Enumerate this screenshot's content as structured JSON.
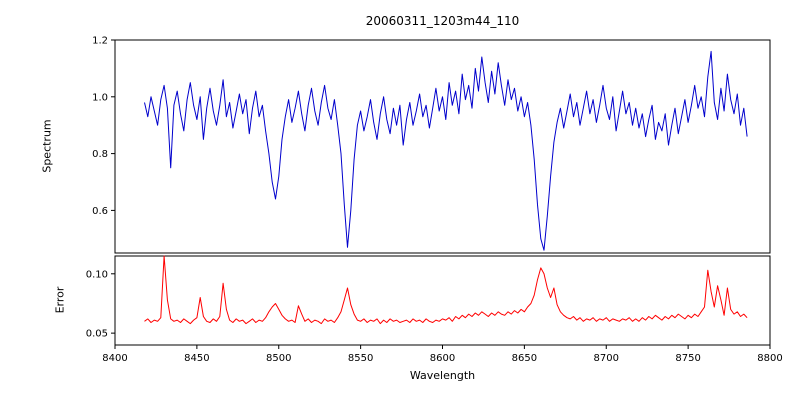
{
  "figure": {
    "title": "20060311_1203m44_110",
    "xlabel": "Wavelength",
    "ylabel_top": "Spectrum",
    "ylabel_bottom": "Error"
  },
  "chart_data": {
    "type": "line",
    "title": "20060311_1203m44_110",
    "xlabel": "Wavelength",
    "xlim": [
      8400,
      8800
    ],
    "xticks": [
      8400,
      8450,
      8500,
      8550,
      8600,
      8650,
      8700,
      8750,
      8800
    ],
    "grid": false,
    "legend": "none",
    "panels": [
      {
        "ylabel": "Spectrum",
        "color": "#0000cd",
        "ylim": [
          0.45,
          1.2
        ],
        "yticks": [
          0.6,
          0.8,
          1.0,
          1.2
        ],
        "ytick_labels": [
          "0.6",
          "0.8",
          "1.0",
          "1.2"
        ]
      },
      {
        "ylabel": "Error",
        "color": "#ff0000",
        "ylim": [
          0.04,
          0.115
        ],
        "yticks": [
          0.05,
          0.1
        ],
        "ytick_labels": [
          "0.05",
          "0.10"
        ]
      }
    ],
    "x": [
      8418,
      8420,
      8422,
      8424,
      8426,
      8428,
      8430,
      8432,
      8434,
      8436,
      8438,
      8440,
      8442,
      8444,
      8446,
      8448,
      8450,
      8452,
      8454,
      8456,
      8458,
      8460,
      8462,
      8464,
      8466,
      8468,
      8470,
      8472,
      8474,
      8476,
      8478,
      8480,
      8482,
      8484,
      8486,
      8488,
      8490,
      8492,
      8494,
      8496,
      8498,
      8500,
      8502,
      8504,
      8506,
      8508,
      8510,
      8512,
      8514,
      8516,
      8518,
      8520,
      8522,
      8524,
      8526,
      8528,
      8530,
      8532,
      8534,
      8536,
      8538,
      8540,
      8542,
      8544,
      8546,
      8548,
      8550,
      8552,
      8554,
      8556,
      8558,
      8560,
      8562,
      8564,
      8566,
      8568,
      8570,
      8572,
      8574,
      8576,
      8578,
      8580,
      8582,
      8584,
      8586,
      8588,
      8590,
      8592,
      8594,
      8596,
      8598,
      8600,
      8602,
      8604,
      8606,
      8608,
      8610,
      8612,
      8614,
      8616,
      8618,
      8620,
      8622,
      8624,
      8626,
      8628,
      8630,
      8632,
      8634,
      8636,
      8638,
      8640,
      8642,
      8644,
      8646,
      8648,
      8650,
      8652,
      8654,
      8656,
      8658,
      8660,
      8662,
      8664,
      8666,
      8668,
      8670,
      8672,
      8674,
      8676,
      8678,
      8680,
      8682,
      8684,
      8686,
      8688,
      8690,
      8692,
      8694,
      8696,
      8698,
      8700,
      8702,
      8704,
      8706,
      8708,
      8710,
      8712,
      8714,
      8716,
      8718,
      8720,
      8722,
      8724,
      8726,
      8728,
      8730,
      8732,
      8734,
      8736,
      8738,
      8740,
      8742,
      8744,
      8746,
      8748,
      8750,
      8752,
      8754,
      8756,
      8758,
      8760,
      8762,
      8764,
      8766,
      8768,
      8770,
      8772,
      8774,
      8776,
      8778,
      8780,
      8782,
      8784,
      8786
    ],
    "series": [
      {
        "name": "spectrum",
        "values": [
          0.98,
          0.93,
          1.0,
          0.95,
          0.9,
          0.99,
          1.04,
          0.96,
          0.75,
          0.97,
          1.02,
          0.94,
          0.88,
          0.99,
          1.05,
          0.97,
          0.92,
          1.0,
          0.85,
          0.96,
          1.03,
          0.95,
          0.9,
          0.97,
          1.06,
          0.93,
          0.98,
          0.89,
          0.95,
          1.01,
          0.94,
          0.99,
          0.87,
          0.96,
          1.02,
          0.93,
          0.97,
          0.88,
          0.8,
          0.7,
          0.64,
          0.72,
          0.85,
          0.93,
          0.99,
          0.91,
          0.96,
          1.02,
          0.94,
          0.88,
          0.97,
          1.03,
          0.95,
          0.9,
          0.98,
          1.04,
          0.96,
          0.92,
          0.99,
          0.9,
          0.8,
          0.62,
          0.47,
          0.6,
          0.78,
          0.9,
          0.95,
          0.88,
          0.93,
          0.99,
          0.91,
          0.85,
          0.94,
          1.0,
          0.92,
          0.87,
          0.96,
          0.9,
          0.97,
          0.83,
          0.92,
          0.98,
          0.9,
          0.95,
          1.01,
          0.93,
          0.97,
          0.89,
          0.96,
          1.03,
          0.95,
          1.0,
          0.92,
          1.05,
          0.97,
          1.02,
          0.94,
          1.08,
          0.99,
          1.04,
          0.96,
          1.1,
          1.02,
          1.14,
          1.05,
          0.98,
          1.09,
          1.01,
          1.12,
          1.04,
          0.97,
          1.06,
          0.99,
          1.03,
          0.95,
          1.0,
          0.93,
          0.98,
          0.9,
          0.78,
          0.62,
          0.5,
          0.46,
          0.58,
          0.72,
          0.84,
          0.91,
          0.96,
          0.89,
          0.95,
          1.01,
          0.93,
          0.98,
          0.9,
          0.96,
          1.02,
          0.94,
          0.99,
          0.91,
          0.97,
          1.04,
          0.96,
          0.92,
          1.0,
          0.88,
          0.95,
          1.02,
          0.94,
          0.98,
          0.9,
          0.96,
          0.89,
          0.94,
          0.86,
          0.92,
          0.97,
          0.85,
          0.91,
          0.88,
          0.94,
          0.83,
          0.9,
          0.96,
          0.87,
          0.93,
          0.99,
          0.91,
          0.97,
          1.04,
          0.96,
          1.0,
          0.93,
          1.07,
          1.16,
          0.98,
          0.92,
          1.03,
          0.95,
          1.08,
          0.99,
          0.94,
          1.01,
          0.9,
          0.96,
          0.86
        ]
      },
      {
        "name": "error",
        "values": [
          0.06,
          0.062,
          0.059,
          0.061,
          0.06,
          0.063,
          0.115,
          0.078,
          0.062,
          0.06,
          0.061,
          0.059,
          0.062,
          0.06,
          0.058,
          0.061,
          0.063,
          0.08,
          0.064,
          0.06,
          0.059,
          0.062,
          0.06,
          0.064,
          0.092,
          0.07,
          0.061,
          0.059,
          0.062,
          0.06,
          0.061,
          0.058,
          0.06,
          0.062,
          0.059,
          0.061,
          0.06,
          0.063,
          0.068,
          0.072,
          0.075,
          0.07,
          0.065,
          0.062,
          0.06,
          0.061,
          0.059,
          0.073,
          0.066,
          0.06,
          0.062,
          0.059,
          0.061,
          0.06,
          0.058,
          0.062,
          0.06,
          0.061,
          0.059,
          0.063,
          0.068,
          0.078,
          0.088,
          0.074,
          0.066,
          0.061,
          0.06,
          0.062,
          0.059,
          0.061,
          0.06,
          0.062,
          0.058,
          0.061,
          0.059,
          0.062,
          0.06,
          0.061,
          0.059,
          0.06,
          0.061,
          0.059,
          0.062,
          0.06,
          0.061,
          0.059,
          0.062,
          0.06,
          0.059,
          0.061,
          0.06,
          0.062,
          0.061,
          0.063,
          0.06,
          0.064,
          0.062,
          0.065,
          0.063,
          0.066,
          0.064,
          0.067,
          0.065,
          0.068,
          0.066,
          0.064,
          0.067,
          0.065,
          0.068,
          0.066,
          0.065,
          0.068,
          0.066,
          0.069,
          0.067,
          0.07,
          0.068,
          0.072,
          0.075,
          0.082,
          0.095,
          0.105,
          0.1,
          0.088,
          0.08,
          0.088,
          0.074,
          0.068,
          0.065,
          0.063,
          0.062,
          0.064,
          0.061,
          0.063,
          0.06,
          0.062,
          0.061,
          0.063,
          0.06,
          0.062,
          0.061,
          0.063,
          0.06,
          0.062,
          0.061,
          0.06,
          0.062,
          0.061,
          0.063,
          0.06,
          0.062,
          0.06,
          0.063,
          0.061,
          0.064,
          0.062,
          0.065,
          0.063,
          0.061,
          0.064,
          0.062,
          0.065,
          0.063,
          0.066,
          0.064,
          0.062,
          0.065,
          0.063,
          0.066,
          0.064,
          0.068,
          0.072,
          0.103,
          0.085,
          0.072,
          0.09,
          0.078,
          0.065,
          0.088,
          0.07,
          0.066,
          0.068,
          0.064,
          0.066,
          0.063
        ]
      }
    ]
  }
}
